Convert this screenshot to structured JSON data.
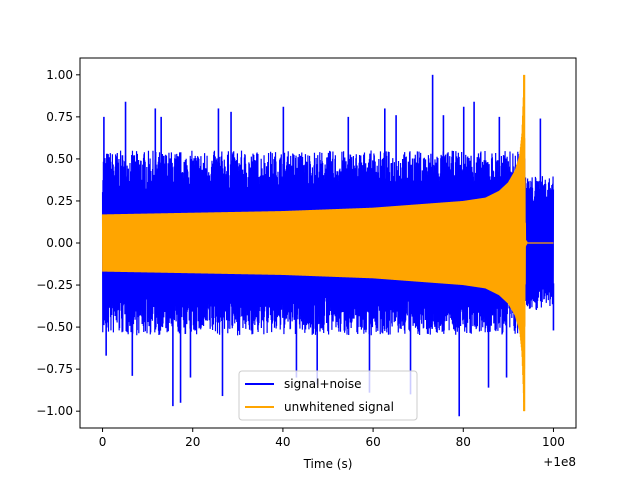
{
  "chart_data": {
    "type": "line",
    "title": "",
    "xlabel": "Time (s)",
    "ylabel": "",
    "x_offset_label": "+1e8",
    "xlim": [
      -5,
      105
    ],
    "ylim": [
      -1.1,
      1.1
    ],
    "x_ticks": [
      0,
      20,
      40,
      60,
      80,
      100
    ],
    "x_tick_labels": [
      "0",
      "20",
      "40",
      "60",
      "80",
      "100"
    ],
    "y_ticks": [
      -1.0,
      -0.75,
      -0.5,
      -0.25,
      0.0,
      0.25,
      0.5,
      0.75,
      1.0
    ],
    "y_tick_labels": [
      "−1.00",
      "−0.75",
      "−0.50",
      "−0.25",
      "0.00",
      "0.25",
      "0.50",
      "0.75",
      "1.00"
    ],
    "grid": false,
    "legend_placement": "lower-center",
    "series": [
      {
        "name": "signal+noise",
        "color": "#0000ff",
        "x_range": [
          0,
          100
        ],
        "upper_envelope": {
          "x": [
            0,
            20,
            40,
            60,
            80,
            93.5,
            94,
            100
          ],
          "y": [
            0.55,
            0.55,
            0.55,
            0.55,
            0.55,
            0.55,
            0.4,
            0.4
          ]
        },
        "lower_envelope": {
          "x": [
            0,
            20,
            40,
            60,
            80,
            93.5,
            94,
            100
          ],
          "y": [
            -0.55,
            -0.55,
            -0.55,
            -0.55,
            -0.55,
            -0.55,
            -0.4,
            -0.4
          ]
        },
        "spikes": [
          {
            "x": 0.3,
            "y": 0.75
          },
          {
            "x": 0.8,
            "y": -0.67
          },
          {
            "x": 5.1,
            "y": 0.84
          },
          {
            "x": 6.6,
            "y": -0.79
          },
          {
            "x": 11.7,
            "y": 0.8
          },
          {
            "x": 13.0,
            "y": 0.75
          },
          {
            "x": 15.6,
            "y": -0.97
          },
          {
            "x": 17.3,
            "y": -0.95
          },
          {
            "x": 19.5,
            "y": -0.8
          },
          {
            "x": 25.7,
            "y": 0.8
          },
          {
            "x": 26.6,
            "y": -0.91
          },
          {
            "x": 28.5,
            "y": 0.78
          },
          {
            "x": 40.1,
            "y": 0.81
          },
          {
            "x": 43.0,
            "y": -0.8
          },
          {
            "x": 47.6,
            "y": -0.84
          },
          {
            "x": 54.5,
            "y": 0.75
          },
          {
            "x": 59.2,
            "y": -0.89
          },
          {
            "x": 62.6,
            "y": 0.8
          },
          {
            "x": 65.1,
            "y": 0.76
          },
          {
            "x": 68.3,
            "y": -0.9
          },
          {
            "x": 73.2,
            "y": 1.0
          },
          {
            "x": 75.6,
            "y": 0.76
          },
          {
            "x": 80.1,
            "y": 0.81
          },
          {
            "x": 79.1,
            "y": -1.03
          },
          {
            "x": 82.4,
            "y": 0.84
          },
          {
            "x": 85.6,
            "y": -0.86
          },
          {
            "x": 88.0,
            "y": 0.75
          },
          {
            "x": 89.6,
            "y": -0.8
          },
          {
            "x": 97.1,
            "y": 0.74
          },
          {
            "x": 100.0,
            "y": -0.52
          }
        ]
      },
      {
        "name": "unwhitened signal",
        "color": "#ffa500",
        "x_range": [
          0,
          100
        ],
        "upper_envelope": {
          "x": [
            0,
            20,
            40,
            60,
            80,
            85,
            88,
            90,
            91.5,
            92.5,
            93.0,
            93.5,
            93.8,
            94.2,
            100
          ],
          "y": [
            0.17,
            0.18,
            0.19,
            0.21,
            0.25,
            0.27,
            0.31,
            0.36,
            0.43,
            0.52,
            0.65,
            1.0,
            0.02,
            0.0,
            0.0
          ]
        },
        "lower_envelope": {
          "x": [
            0,
            20,
            40,
            60,
            80,
            85,
            88,
            90,
            91.5,
            92.5,
            93.0,
            93.5,
            93.8,
            94.2,
            100
          ],
          "y": [
            -0.17,
            -0.18,
            -0.19,
            -0.21,
            -0.25,
            -0.27,
            -0.31,
            -0.36,
            -0.43,
            -0.52,
            -0.65,
            -1.0,
            -0.02,
            0.0,
            0.0
          ]
        }
      }
    ]
  }
}
